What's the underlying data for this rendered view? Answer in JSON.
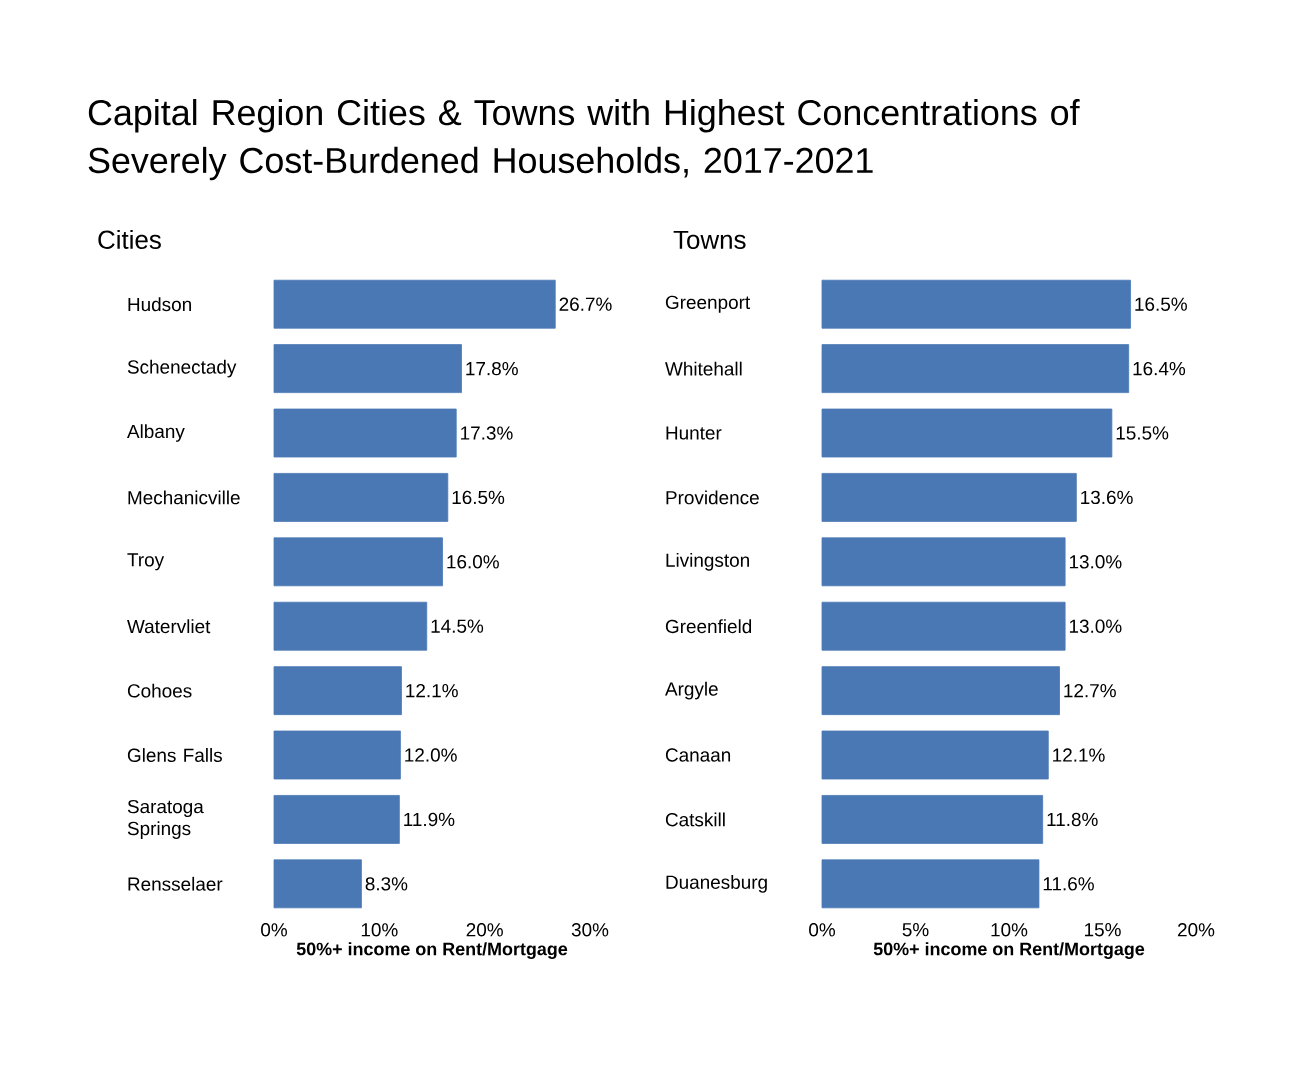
{
  "chart_data": [
    {
      "type": "bar",
      "orientation": "horizontal",
      "title": "Capital Region Cities & Towns with Highest Concentrations of Severely Cost-Burdened Households, 2017-2021",
      "subtitle": "Cities",
      "xlabel": "50%+ income on Rent/Mortgage",
      "categories": [
        "Hudson",
        "Schenectady",
        "Albany",
        "Mechanicville",
        "Troy",
        "Watervliet",
        "Cohoes",
        "Glens Falls",
        "Saratoga Springs",
        "Rensselaer"
      ],
      "values": [
        26.7,
        17.8,
        17.3,
        16.5,
        16.0,
        14.5,
        12.1,
        12.0,
        11.9,
        8.3
      ],
      "value_labels": [
        "26.7%",
        "17.8%",
        "17.3%",
        "16.5%",
        "16.0%",
        "14.5%",
        "12.1%",
        "12.0%",
        "11.9%",
        "8.3%"
      ],
      "color": "#4a78b4",
      "xlim": [
        0,
        30
      ],
      "xticks": [
        {
          "value": 0,
          "label": "0%"
        },
        {
          "value": 10,
          "label": "10%"
        },
        {
          "value": 20,
          "label": "20%"
        },
        {
          "value": 30,
          "label": "30%"
        }
      ]
    },
    {
      "type": "bar",
      "orientation": "horizontal",
      "title": "Towns",
      "xlabel": "50%+ income on Rent/Mortgage",
      "categories": [
        "Greenport",
        "Whitehall",
        "Hunter",
        "Providence",
        "Livingston",
        "Greenfield",
        "Argyle",
        "Canaan",
        "Catskill",
        "Duanesburg"
      ],
      "values": [
        16.5,
        16.4,
        15.5,
        13.6,
        13.0,
        13.0,
        12.7,
        12.1,
        11.8,
        11.6
      ],
      "value_labels": [
        "16.5%",
        "16.4%",
        "15.5%",
        "13.6%",
        "13.0%",
        "13.0%",
        "12.7%",
        "12.1%",
        "11.8%",
        "11.6%"
      ],
      "color": "#4a78b4",
      "xlim": [
        0,
        20
      ],
      "xticks": [
        {
          "value": 0,
          "label": "0%"
        },
        {
          "value": 5,
          "label": "5%"
        },
        {
          "value": 10,
          "label": "10%"
        },
        {
          "value": 15,
          "label": "15%"
        },
        {
          "value": 20,
          "label": "20%"
        }
      ]
    }
  ]
}
